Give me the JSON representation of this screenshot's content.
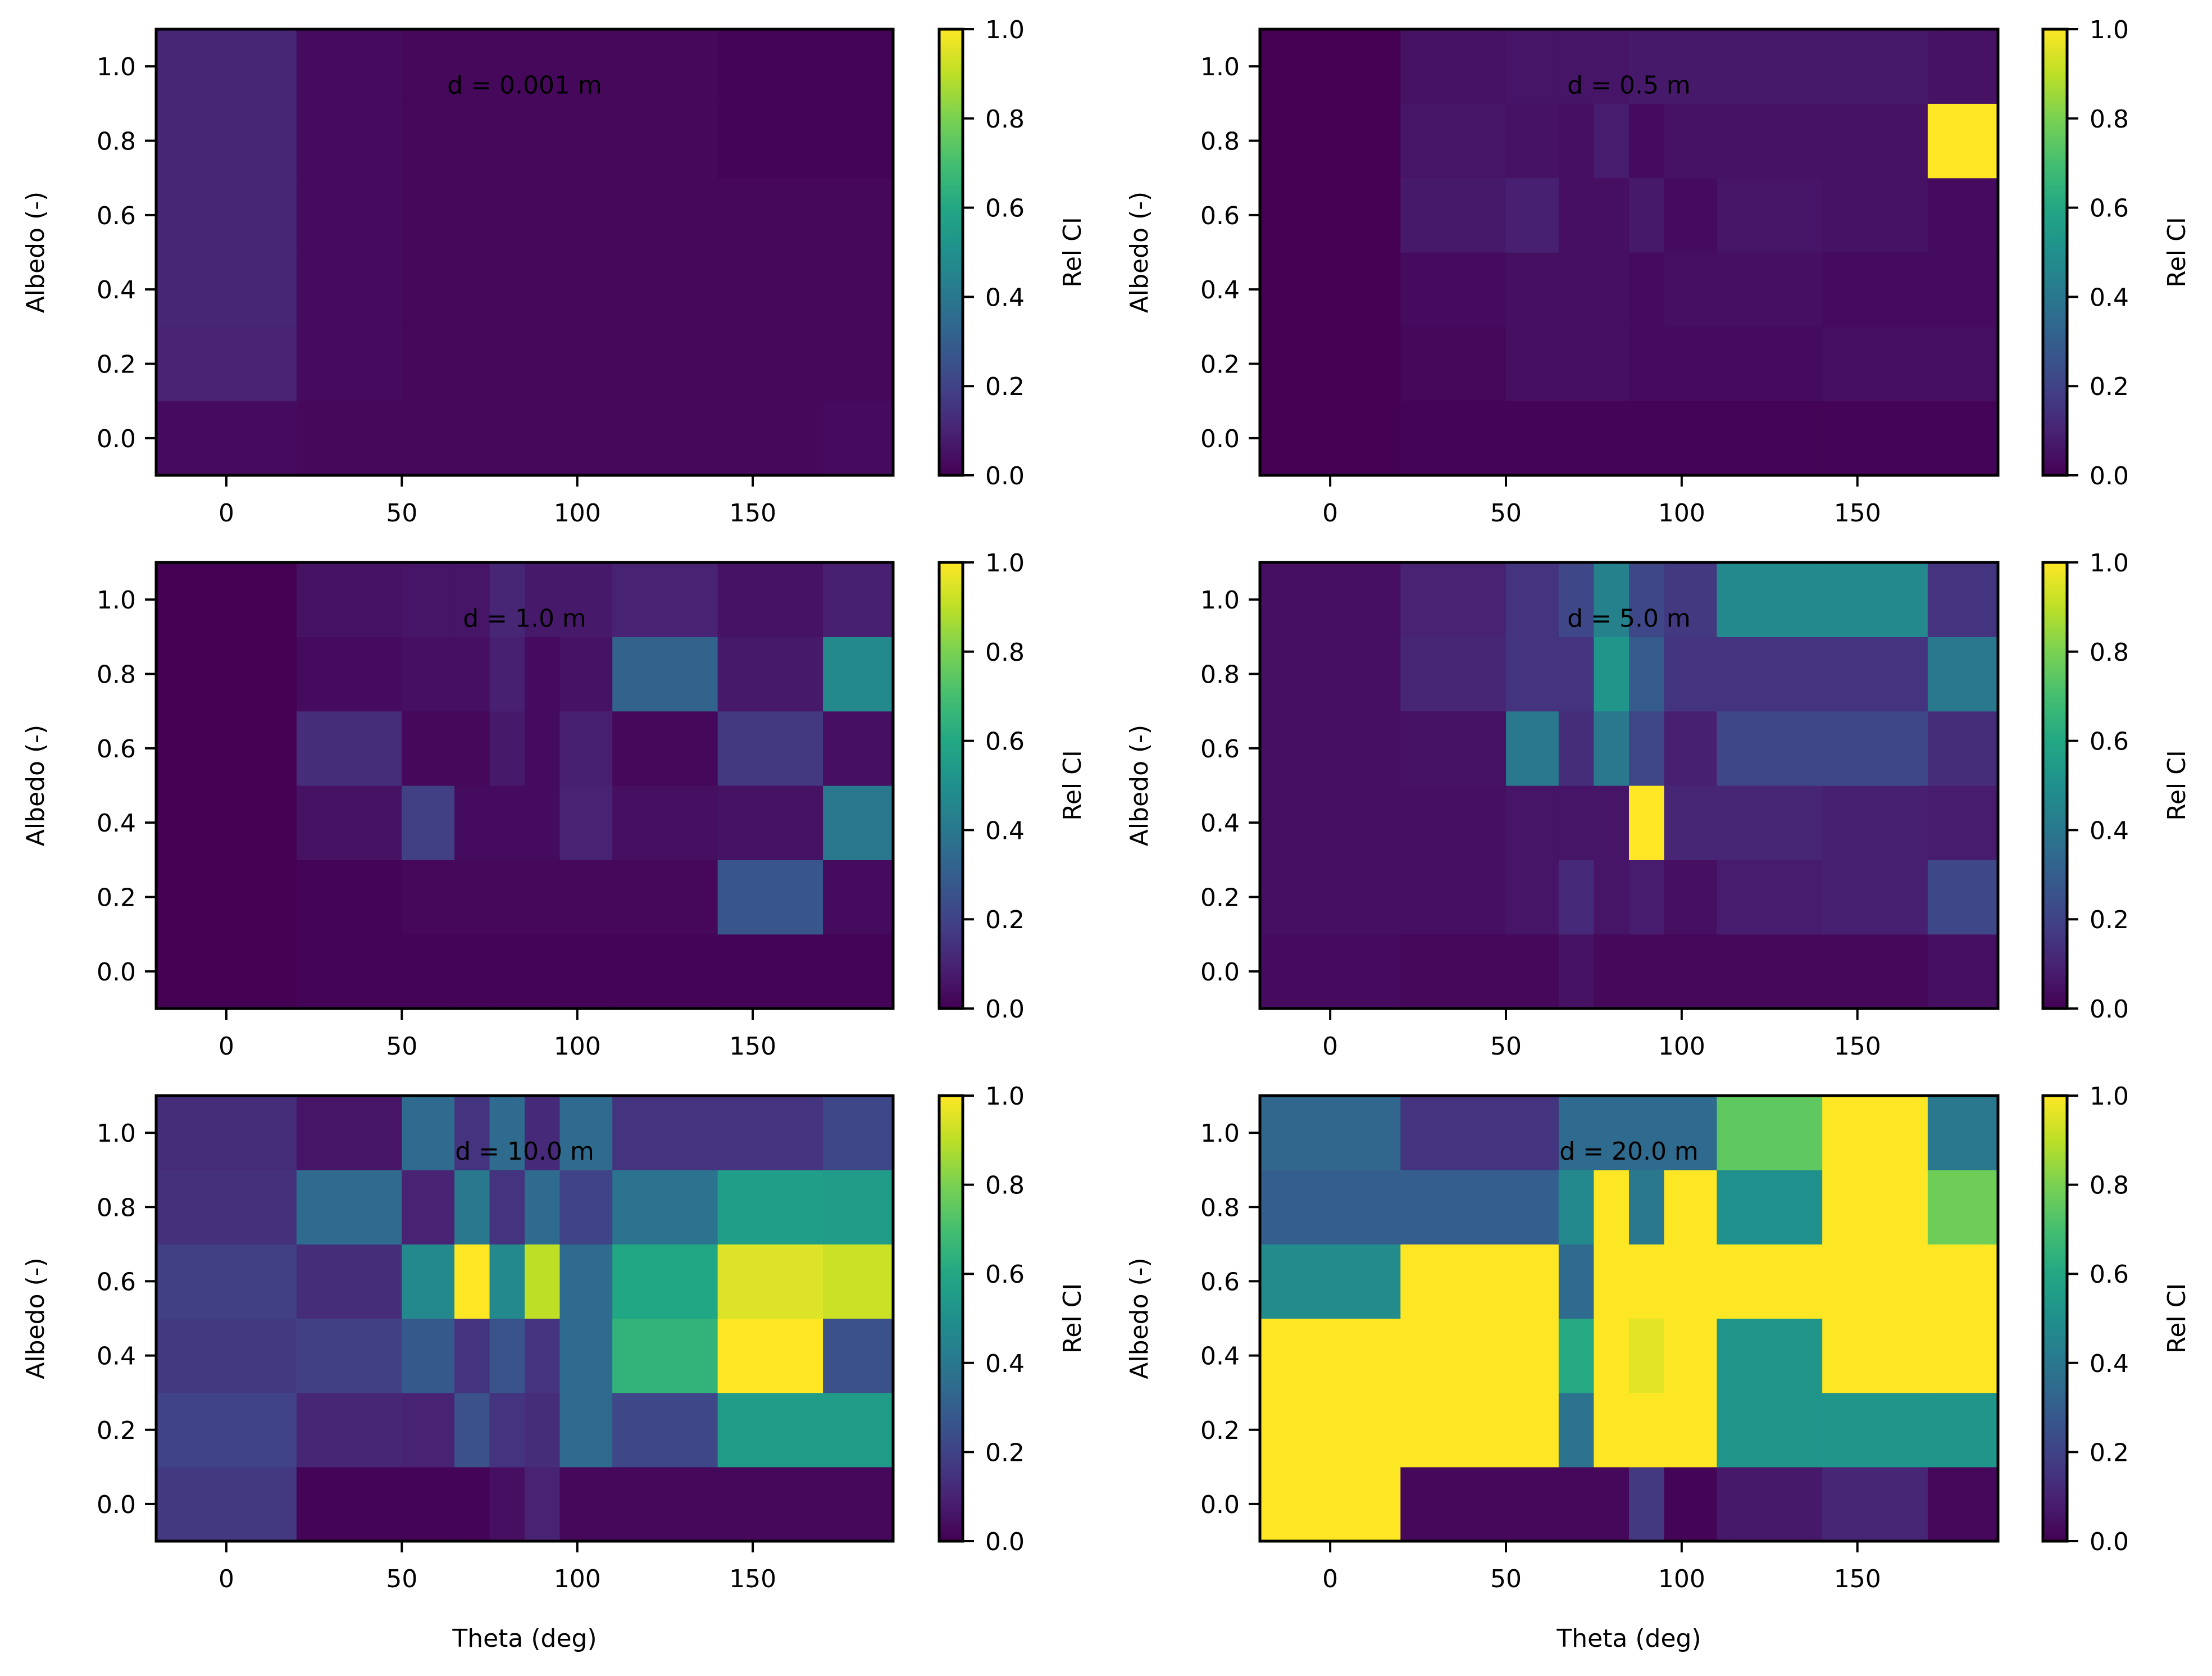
{
  "chart_data": {
    "type": "heatmap",
    "colormap": "viridis",
    "x_edges": [
      -20,
      20,
      50,
      65,
      75,
      85,
      95,
      110,
      140,
      170,
      190
    ],
    "y_edges": [
      -0.1,
      0.1,
      0.3,
      0.5,
      0.7,
      0.9,
      1.1
    ],
    "xlim": [
      -20,
      190
    ],
    "ylim": [
      -0.1,
      1.1
    ],
    "xticks": [
      0,
      50,
      100,
      150
    ],
    "yticks": [
      0.0,
      0.2,
      0.4,
      0.6,
      0.8,
      1.0
    ],
    "xtick_labels": [
      "0",
      "50",
      "100",
      "150"
    ],
    "ytick_labels": [
      "0.0",
      "0.2",
      "0.4",
      "0.6",
      "0.8",
      "1.0"
    ],
    "xlabel": "Theta (deg)",
    "ylabel": "Albedo (-)",
    "colorbar_label": "Rel CI",
    "colorbar_range": [
      0.0,
      1.0
    ],
    "colorbar_ticks": [
      0.0,
      0.2,
      0.4,
      0.6,
      0.8,
      1.0
    ],
    "colorbar_tick_labels": [
      "0.0",
      "0.2",
      "0.4",
      "0.6",
      "0.8",
      "1.0"
    ],
    "panels": [
      {
        "title": "d = 0.001 m",
        "values": [
          [
            0.03,
            0.02,
            0.02,
            0.02,
            0.02,
            0.02,
            0.02,
            0.02,
            0.02,
            0.03
          ],
          [
            0.1,
            0.03,
            0.02,
            0.02,
            0.02,
            0.02,
            0.02,
            0.02,
            0.02,
            0.02
          ],
          [
            0.11,
            0.03,
            0.02,
            0.02,
            0.02,
            0.02,
            0.02,
            0.02,
            0.02,
            0.02
          ],
          [
            0.11,
            0.03,
            0.02,
            0.02,
            0.02,
            0.02,
            0.02,
            0.02,
            0.02,
            0.02
          ],
          [
            0.11,
            0.03,
            0.02,
            0.02,
            0.02,
            0.02,
            0.02,
            0.02,
            0.01,
            0.01
          ],
          [
            0.11,
            0.03,
            0.02,
            0.02,
            0.02,
            0.02,
            0.02,
            0.02,
            0.01,
            0.01
          ]
        ]
      },
      {
        "title": "d = 0.5 m",
        "values": [
          [
            0.0,
            0.01,
            0.01,
            0.01,
            0.01,
            0.01,
            0.01,
            0.01,
            0.01,
            0.01
          ],
          [
            0.0,
            0.02,
            0.04,
            0.04,
            0.04,
            0.03,
            0.03,
            0.03,
            0.04,
            0.04
          ],
          [
            0.0,
            0.03,
            0.04,
            0.04,
            0.04,
            0.03,
            0.04,
            0.04,
            0.03,
            0.03
          ],
          [
            0.0,
            0.07,
            0.09,
            0.04,
            0.04,
            0.07,
            0.03,
            0.06,
            0.05,
            0.03
          ],
          [
            0.0,
            0.06,
            0.05,
            0.04,
            0.08,
            0.03,
            0.05,
            0.05,
            0.05,
            1.0
          ],
          [
            0.0,
            0.05,
            0.06,
            0.06,
            0.06,
            0.07,
            0.07,
            0.07,
            0.07,
            0.05
          ]
        ]
      },
      {
        "title": "d = 1.0 m",
        "values": [
          [
            0.0,
            0.01,
            0.01,
            0.01,
            0.01,
            0.01,
            0.01,
            0.01,
            0.01,
            0.01
          ],
          [
            0.0,
            0.01,
            0.02,
            0.02,
            0.02,
            0.02,
            0.02,
            0.02,
            0.27,
            0.03
          ],
          [
            0.0,
            0.05,
            0.19,
            0.03,
            0.03,
            0.03,
            0.1,
            0.04,
            0.05,
            0.4
          ],
          [
            0.0,
            0.13,
            0.02,
            0.02,
            0.07,
            0.03,
            0.09,
            0.02,
            0.17,
            0.04
          ],
          [
            0.0,
            0.03,
            0.04,
            0.04,
            0.09,
            0.03,
            0.05,
            0.32,
            0.07,
            0.47
          ],
          [
            0.0,
            0.05,
            0.06,
            0.06,
            0.11,
            0.07,
            0.07,
            0.1,
            0.05,
            0.09
          ]
        ]
      },
      {
        "title": "d = 5.0 m",
        "values": [
          [
            0.03,
            0.02,
            0.02,
            0.05,
            0.02,
            0.02,
            0.02,
            0.02,
            0.02,
            0.04
          ],
          [
            0.04,
            0.04,
            0.06,
            0.12,
            0.06,
            0.08,
            0.04,
            0.08,
            0.09,
            0.22
          ],
          [
            0.04,
            0.04,
            0.06,
            0.06,
            0.06,
            1.0,
            0.11,
            0.11,
            0.09,
            0.08
          ],
          [
            0.04,
            0.05,
            0.4,
            0.13,
            0.4,
            0.21,
            0.09,
            0.22,
            0.22,
            0.13
          ],
          [
            0.04,
            0.11,
            0.15,
            0.15,
            0.52,
            0.29,
            0.15,
            0.15,
            0.15,
            0.4
          ],
          [
            0.04,
            0.1,
            0.15,
            0.22,
            0.44,
            0.22,
            0.17,
            0.47,
            0.47,
            0.15
          ]
        ]
      },
      {
        "title": "d = 10.0 m",
        "values": [
          [
            0.17,
            0.01,
            0.01,
            0.01,
            0.04,
            0.1,
            0.02,
            0.02,
            0.02,
            0.02
          ],
          [
            0.2,
            0.11,
            0.1,
            0.25,
            0.15,
            0.13,
            0.35,
            0.22,
            0.55,
            0.55
          ],
          [
            0.17,
            0.19,
            0.28,
            0.15,
            0.26,
            0.15,
            0.35,
            0.65,
            1.0,
            0.25
          ],
          [
            0.19,
            0.13,
            0.47,
            1.0,
            0.47,
            0.9,
            0.35,
            0.6,
            0.95,
            0.92
          ],
          [
            0.14,
            0.35,
            0.1,
            0.4,
            0.15,
            0.35,
            0.2,
            0.38,
            0.56,
            0.55
          ],
          [
            0.13,
            0.06,
            0.35,
            0.15,
            0.35,
            0.12,
            0.35,
            0.15,
            0.15,
            0.22
          ]
        ]
      },
      {
        "title": "d = 20.0 m",
        "values": [
          [
            1.0,
            0.02,
            0.02,
            0.02,
            0.02,
            0.17,
            0.01,
            0.07,
            0.11,
            0.02
          ],
          [
            1.0,
            1.0,
            1.0,
            0.38,
            1.0,
            1.0,
            1.0,
            0.52,
            0.52,
            0.52
          ],
          [
            1.0,
            1.0,
            1.0,
            0.61,
            1.0,
            0.96,
            1.0,
            0.52,
            1.0,
            1.0
          ],
          [
            0.48,
            1.0,
            1.0,
            0.35,
            1.0,
            1.0,
            1.0,
            1.0,
            1.0,
            1.0
          ],
          [
            0.3,
            0.3,
            0.3,
            0.47,
            1.0,
            0.4,
            1.0,
            0.5,
            1.0,
            0.78
          ],
          [
            0.33,
            0.15,
            0.15,
            0.35,
            0.35,
            0.35,
            0.35,
            0.75,
            1.0,
            0.4
          ]
        ]
      }
    ]
  }
}
